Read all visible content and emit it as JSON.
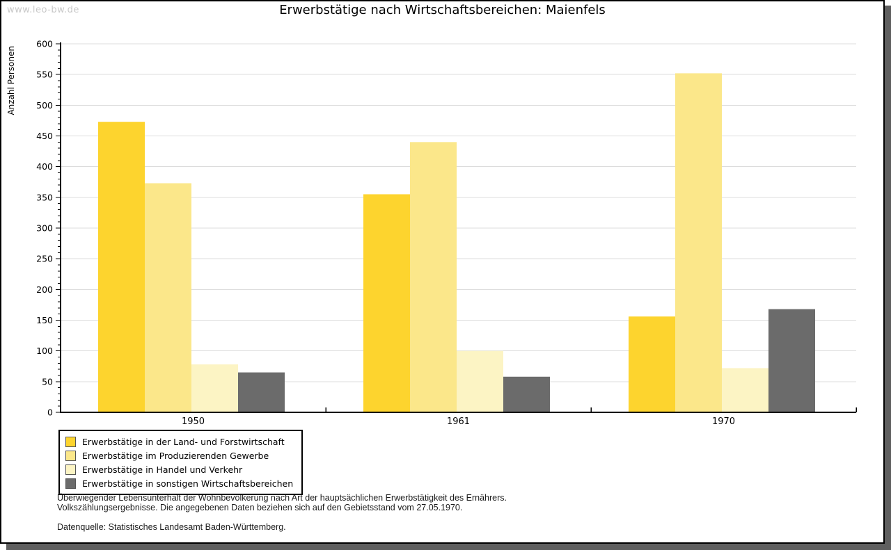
{
  "watermark": "www.leo-bw.de",
  "title": "Erwerbstätige nach Wirtschaftsbereichen: Maienfels",
  "chart_data": {
    "type": "bar",
    "title": "Erwerbstätige nach Wirtschaftsbereichen: Maienfels",
    "xlabel": "",
    "ylabel": "Anzahl Personen",
    "categories": [
      "1950",
      "1961",
      "1970"
    ],
    "series": [
      {
        "name": "Erwerbstätige in der Land- und Forstwirtschaft",
        "color": "#FDD42E",
        "values": [
          473,
          355,
          156
        ]
      },
      {
        "name": "Erwerbstätige im Produzierenden Gewerbe",
        "color": "#FBE78A",
        "values": [
          373,
          440,
          552
        ]
      },
      {
        "name": "Erwerbstätige in Handel und Verkehr",
        "color": "#FCF4C4",
        "values": [
          78,
          100,
          72
        ]
      },
      {
        "name": "Erwerbstätige in sonstigen Wirtschaftsbereichen",
        "color": "#6B6B6B",
        "values": [
          65,
          58,
          168
        ]
      }
    ],
    "ylim": [
      0,
      600
    ],
    "ytick_step": 50,
    "yminor_step": 10,
    "grid": true,
    "legend_position": "bottom-left"
  },
  "colors": {
    "grid": "#dcdcdc",
    "axis": "#000000",
    "watermark": "#c8c8c8",
    "shadow": "#5f5f5f",
    "background": "#ffffff"
  },
  "footnotes": {
    "line1": "Überwiegender Lebensunterhalt der Wohnbevölkerung nach Art der hauptsächlichen Erwerbstätigkeit des Ernährers.",
    "line2": "Volkszählungsergebnisse. Die angegebenen Daten beziehen sich auf den Gebietsstand vom 27.05.1970.",
    "source": "Datenquelle: Statistisches Landesamt Baden-Württemberg."
  }
}
